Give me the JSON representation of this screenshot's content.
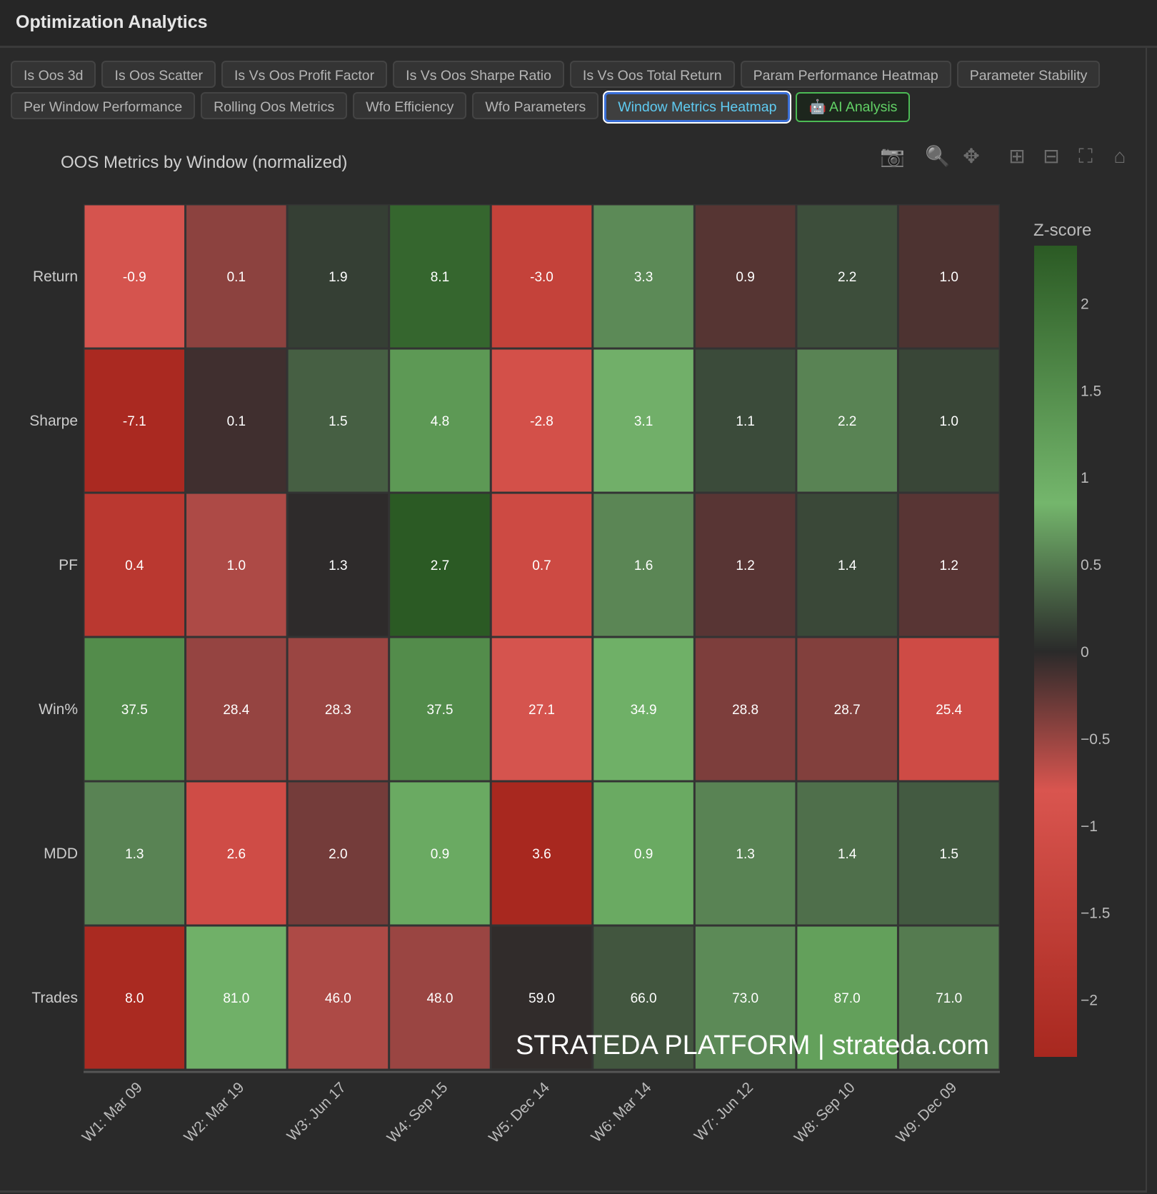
{
  "app": {
    "title": "Optimization Analytics"
  },
  "tabs": [
    {
      "label": "Is Oos 3d"
    },
    {
      "label": "Is Oos Scatter"
    },
    {
      "label": "Is Vs Oos Profit Factor"
    },
    {
      "label": "Is Vs Oos Sharpe Ratio"
    },
    {
      "label": "Is Vs Oos Total Return"
    },
    {
      "label": "Param Performance Heatmap"
    },
    {
      "label": "Parameter Stability"
    },
    {
      "label": "Per Window Performance"
    },
    {
      "label": "Rolling Oos Metrics"
    },
    {
      "label": "Wfo Efficiency"
    },
    {
      "label": "Wfo Parameters"
    },
    {
      "label": "Window Metrics Heatmap",
      "active": true
    },
    {
      "label": "🤖 AI Analysis",
      "icon": "robot-icon"
    }
  ],
  "modebar": [
    "camera-icon",
    "zoom-icon",
    "pan-icon",
    "zoom-in-icon",
    "zoom-out-icon",
    "autoscale-icon",
    "home-icon"
  ],
  "watermark": "STRATEDA PLATFORM | strateda.com",
  "chart_data": {
    "type": "heatmap",
    "title": "OOS Metrics by Window (normalized)",
    "x": [
      "W1: Mar 09",
      "W2: Mar 19",
      "W3: Jun 17",
      "W4: Sep 15",
      "W5: Dec 14",
      "W6: Mar 14",
      "W7: Jun 12",
      "W8: Sep 10",
      "W9: Dec 09"
    ],
    "y": [
      "Return",
      "Sharpe",
      "PF",
      "Win%",
      "MDD",
      "Trades"
    ],
    "text": [
      [
        "-0.9",
        "0.1",
        "1.9",
        "8.1",
        "-3.0",
        "3.3",
        "0.9",
        "2.2",
        "1.0"
      ],
      [
        "-7.1",
        "0.1",
        "1.5",
        "4.8",
        "-2.8",
        "3.1",
        "1.1",
        "2.2",
        "1.0"
      ],
      [
        "0.4",
        "1.0",
        "1.3",
        "2.7",
        "0.7",
        "1.6",
        "1.2",
        "1.4",
        "1.2"
      ],
      [
        "37.5",
        "28.4",
        "28.3",
        "37.5",
        "27.1",
        "34.9",
        "28.8",
        "28.7",
        "25.4"
      ],
      [
        "1.3",
        "2.6",
        "2.0",
        "0.9",
        "3.6",
        "0.9",
        "1.3",
        "1.4",
        "1.5"
      ],
      [
        "8.0",
        "81.0",
        "46.0",
        "48.0",
        "59.0",
        "66.0",
        "73.0",
        "87.0",
        "71.0"
      ]
    ],
    "z": [
      [
        -0.78,
        -0.45,
        0.13,
        2.13,
        -1.46,
        0.58,
        -0.2,
        0.22,
        -0.16
      ],
      [
        -2.28,
        -0.1,
        0.32,
        1.32,
        -0.98,
        0.81,
        0.2,
        0.54,
        0.17
      ],
      [
        -1.78,
        -0.6,
        -0.02,
        2.55,
        -1.18,
        0.56,
        -0.21,
        0.18,
        -0.21
      ],
      [
        1.52,
        -0.49,
        -0.51,
        1.52,
        -0.78,
        0.95,
        -0.38,
        -0.4,
        -1.13
      ],
      [
        0.54,
        -1.1,
        -0.34,
        1.05,
        -2.36,
        1.05,
        0.54,
        0.42,
        0.29
      ],
      [
        -2.27,
        0.94,
        -0.6,
        -0.51,
        -0.03,
        0.27,
        0.58,
        1.2,
        0.49
      ]
    ],
    "colorbar": {
      "title": "Z-score",
      "ticks": [
        2,
        1.5,
        1,
        0.5,
        0,
        -0.5,
        -1,
        -1.5,
        -2
      ],
      "tick_labels": [
        "2",
        "1.5",
        "1",
        "0.5",
        "0",
        "−0.5",
        "−1",
        "−1.5",
        "−2"
      ],
      "range": [
        -2.33,
        2.33
      ]
    },
    "colorscale": [
      [
        -2.33,
        "#a8281f"
      ],
      [
        -0.8,
        "#d9554f"
      ],
      [
        0,
        "#2a2a2a"
      ],
      [
        0.85,
        "#74b66c"
      ],
      [
        2.33,
        "#2b5a24"
      ]
    ]
  }
}
